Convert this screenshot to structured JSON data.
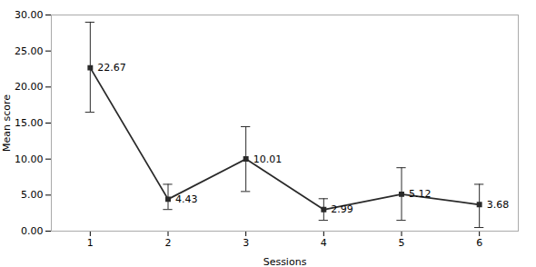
{
  "chart_data": {
    "type": "line",
    "x": [
      1,
      2,
      3,
      4,
      5,
      6
    ],
    "values": [
      22.67,
      4.43,
      10.01,
      2.99,
      5.12,
      3.68
    ],
    "ci_upper": [
      6.33,
      2.07,
      4.49,
      1.51,
      3.68,
      2.82
    ],
    "ci_lower": [
      6.17,
      1.43,
      4.51,
      1.49,
      3.62,
      3.18
    ],
    "data_labels": true,
    "xlabel": "Sessions",
    "ylabel": "Mean score",
    "xlim": [
      0.5,
      6.5
    ],
    "xticks": [
      1,
      2,
      3,
      4,
      5,
      6
    ],
    "ylim": [
      0.0,
      30.0
    ],
    "yticks": [
      {
        "value": 0,
        "label": "0.00"
      },
      {
        "value": 5,
        "label": "5.00"
      },
      {
        "value": 10,
        "label": "10.00"
      },
      {
        "value": 15,
        "label": "15.00"
      },
      {
        "value": 20,
        "label": "20.00"
      },
      {
        "value": 25,
        "label": "25.00"
      },
      {
        "value": 30,
        "label": "30.00"
      }
    ],
    "color": "#2a2a2a",
    "marker": "square",
    "line_style": "solid",
    "grid": false
  }
}
